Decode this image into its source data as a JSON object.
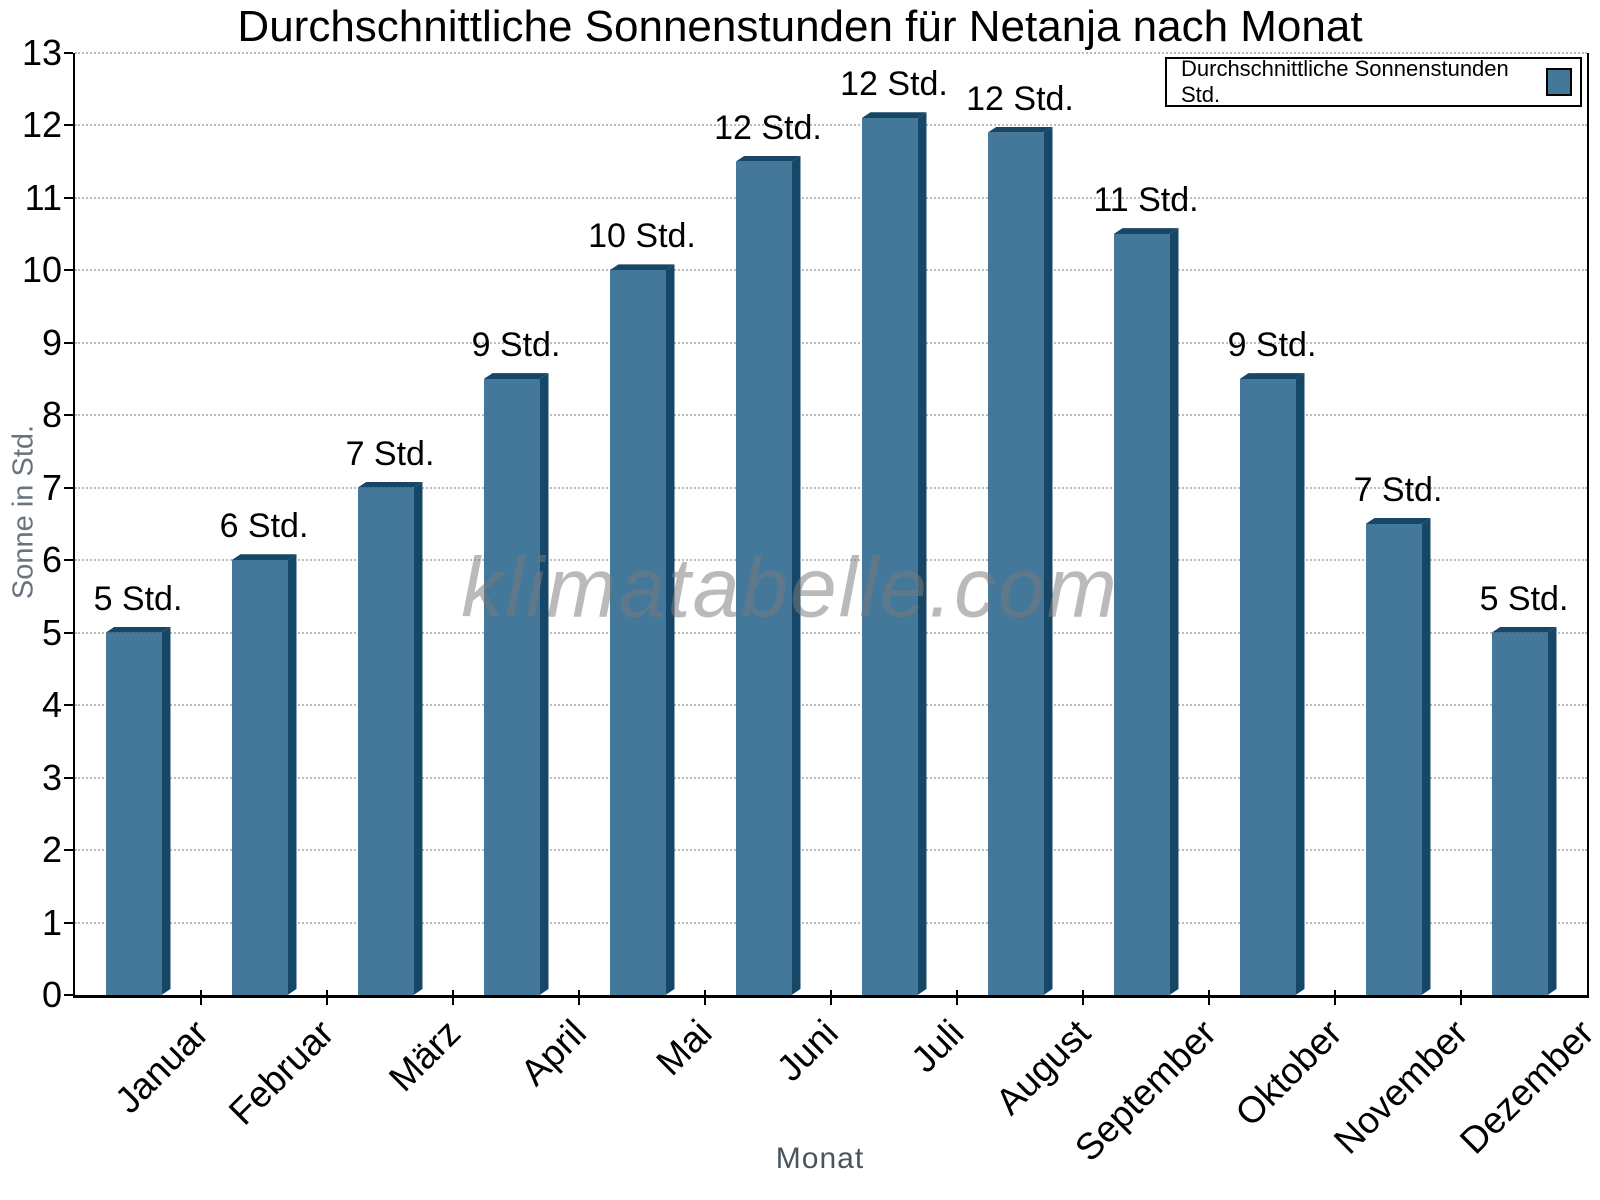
{
  "title": "Durchschnittliche Sonnenstunden für Netanja nach Monat",
  "watermark": "klimatabelle.com",
  "legend": {
    "label": "Durchschnittliche Sonnenstunden Std.",
    "position": "top-right"
  },
  "colors": {
    "bar_fill": "#44789B",
    "bar_shadow": "#174767",
    "axis": "#000000",
    "gridline": "#bcbcbc",
    "axis_title_gray": "#4a545e",
    "y_axis_title_gray": "#68737e"
  },
  "chart_data": {
    "type": "bar",
    "title": "Durchschnittliche Sonnenstunden für Netanja nach Monat",
    "xlabel": "Monat",
    "ylabel": "Sonne in Std.",
    "categories": [
      "Januar",
      "Februar",
      "März",
      "April",
      "Mai",
      "Juni",
      "Juli",
      "August",
      "September",
      "Oktober",
      "November",
      "Dezember"
    ],
    "values": [
      5,
      6,
      7,
      8.5,
      10,
      11.5,
      12.1,
      11.9,
      10.5,
      8.5,
      6.5,
      5
    ],
    "bar_labels": [
      "5 Std.",
      "6 Std.",
      "7 Std.",
      "9 Std.",
      "10 Std.",
      "12 Std.",
      "12 Std.",
      "12 Std.",
      "11 Std.",
      "9 Std.",
      "7 Std.",
      "5 Std."
    ],
    "ylim": [
      0,
      13
    ],
    "ytick_step": 1,
    "ytick_labels": [
      "0",
      "1",
      "2",
      "3",
      "4",
      "5",
      "6",
      "7",
      "8",
      "9",
      "10",
      "11",
      "12",
      "13"
    ],
    "grid": "horizontal dotted, on",
    "legend_position": "top-right",
    "legend": "Durchschnittliche Sonnenstunden Std.",
    "bar_style": "3d-extruded",
    "watermark": "klimatabelle.com"
  }
}
